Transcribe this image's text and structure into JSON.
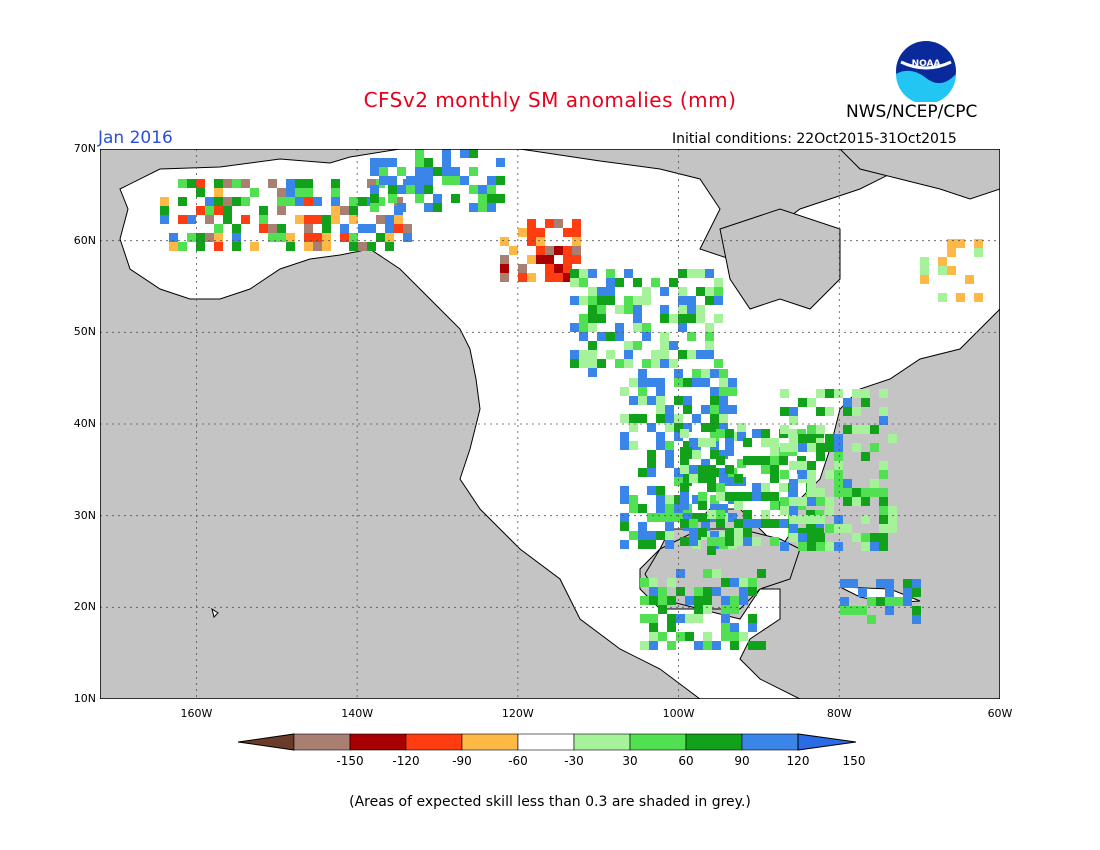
{
  "header": {
    "title": "CFSv2 monthly SM anomalies (mm)",
    "org": "NWS/NCEP/CPC",
    "logo_text": "NOAA",
    "month": "Jan 2016",
    "initial_conditions": "Initial conditions: 22Oct2015-31Oct2015"
  },
  "map": {
    "lat_labels": [
      "70N",
      "60N",
      "50N",
      "40N",
      "30N",
      "20N",
      "10N"
    ],
    "lon_labels": [
      "160W",
      "140W",
      "120W",
      "100W",
      "80W",
      "60W"
    ],
    "extent": {
      "lon_min": -172,
      "lon_max": -60,
      "lat_min": 10,
      "lat_max": 70
    },
    "colors": {
      "ocean": "#c4c4c4",
      "land": "#ffffff",
      "grid": "#666666"
    }
  },
  "colorbar": {
    "labels": [
      "-150",
      "-120",
      "-90",
      "-60",
      "-30",
      "30",
      "60",
      "90",
      "120",
      "150"
    ],
    "colors": [
      "#6b3b2a",
      "#a97f72",
      "#a80000",
      "#ff3d10",
      "#fdb845",
      "#ffffff",
      "#a6f29b",
      "#51e052",
      "#12a11a",
      "#3a85e8",
      "#2b6be6"
    ]
  },
  "note": "(Areas of expected skill less than 0.3 are shaded in grey.)"
}
